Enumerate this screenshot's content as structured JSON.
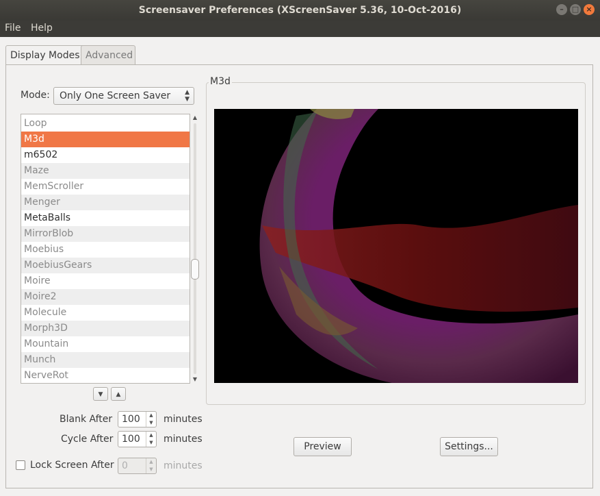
{
  "window": {
    "title": "Screensaver Preferences  (XScreenSaver 5.36, 10-Oct-2016)",
    "controls": [
      "minimize-icon",
      "maximize-icon",
      "close-icon"
    ]
  },
  "menu": {
    "file": "File",
    "help": "Help"
  },
  "tabs": [
    {
      "label": "Display Modes",
      "active": true
    },
    {
      "label": "Advanced",
      "active": false
    }
  ],
  "mode": {
    "label": "Mode:",
    "value": "Only One Screen Saver"
  },
  "screensavers": [
    {
      "name": "Loop",
      "selected": false,
      "enabled": false
    },
    {
      "name": "M3d",
      "selected": true,
      "enabled": true
    },
    {
      "name": "m6502",
      "selected": false,
      "enabled": true
    },
    {
      "name": "Maze",
      "selected": false,
      "enabled": false
    },
    {
      "name": "MemScroller",
      "selected": false,
      "enabled": false
    },
    {
      "name": "Menger",
      "selected": false,
      "enabled": false
    },
    {
      "name": "MetaBalls",
      "selected": false,
      "enabled": true
    },
    {
      "name": "MirrorBlob",
      "selected": false,
      "enabled": false
    },
    {
      "name": "Moebius",
      "selected": false,
      "enabled": false
    },
    {
      "name": "MoebiusGears",
      "selected": false,
      "enabled": false
    },
    {
      "name": "Moire",
      "selected": false,
      "enabled": false
    },
    {
      "name": "Moire2",
      "selected": false,
      "enabled": false
    },
    {
      "name": "Molecule",
      "selected": false,
      "enabled": false
    },
    {
      "name": "Morph3D",
      "selected": false,
      "enabled": false
    },
    {
      "name": "Mountain",
      "selected": false,
      "enabled": false
    },
    {
      "name": "Munch",
      "selected": false,
      "enabled": false
    },
    {
      "name": "NerveRot",
      "selected": false,
      "enabled": false
    }
  ],
  "list_nav": {
    "down_icon": "arrow-down-icon",
    "up_icon": "arrow-up-icon"
  },
  "timing": {
    "blank_after": {
      "label": "Blank After",
      "value": "100",
      "unit": "minutes"
    },
    "cycle_after": {
      "label": "Cycle After",
      "value": "100",
      "unit": "minutes"
    },
    "lock_screen_after": {
      "label": "Lock Screen After",
      "value": "0",
      "unit": "minutes",
      "checked": false,
      "enabled": false
    }
  },
  "preview": {
    "title": "M3d",
    "preview_button": "Preview",
    "settings_button": "Settings..."
  },
  "colors": {
    "selection": "#f07746",
    "titlebar": "#3c3b37",
    "close_button": "#f27a3c"
  }
}
